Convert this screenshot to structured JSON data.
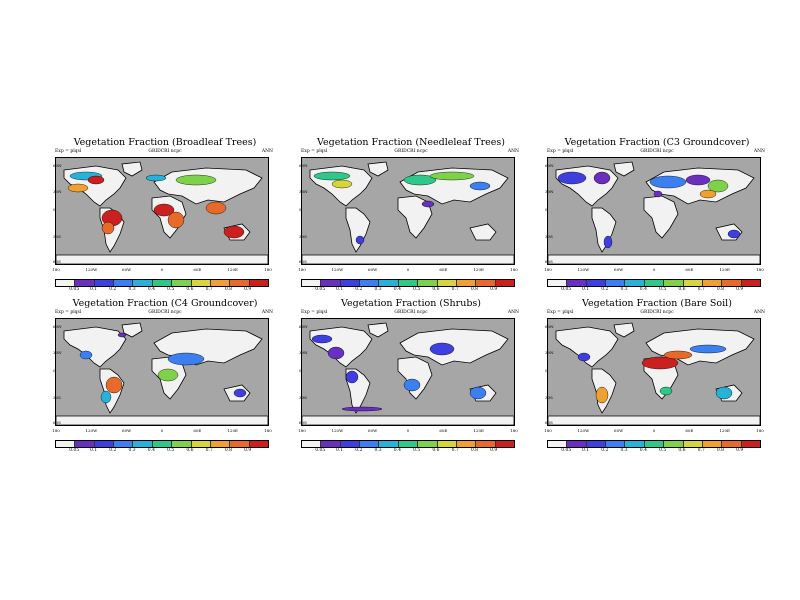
{
  "common": {
    "exp": "Exp = plqsl",
    "season": "ANN",
    "lat_labels": [
      "60N",
      "30N",
      "0",
      "30S",
      "60S"
    ],
    "lon_labels": [
      "180",
      "120W",
      "60W",
      "0",
      "60E",
      "120E",
      "180"
    ],
    "colorbar_labels": [
      "0.05",
      "0.1",
      "0.2",
      "0.3",
      "0.4",
      "0.5",
      "0.6",
      "0.7",
      "0.8",
      "0.9"
    ],
    "colorbar_colors": [
      "#f2f2f2",
      "#6b2fbf",
      "#3f3fe0",
      "#3b7ff0",
      "#27b3d9",
      "#2ec88a",
      "#7ed24a",
      "#d6d53a",
      "#f0a030",
      "#e86a2a",
      "#cc1f1f"
    ]
  },
  "panels": [
    {
      "title": "Vegetation Fraction (Broadleaf Trees)",
      "grid": "GRIDCRI ncpc"
    },
    {
      "title": "Vegetation Fraction (Needleleaf Trees)",
      "grid": "GRIDCRI ncpc"
    },
    {
      "title": "Vegetation Fraction (C3 Groundcover)",
      "grid": "GRIDCRI ncpc"
    },
    {
      "title": "Vegetation Fraction (C4 Groundcover)",
      "grid": "GRIDCRI ncpc"
    },
    {
      "title": "Vegetation Fraction (Shrubs)",
      "grid": "GRIDCRI ncpc"
    },
    {
      "title": "Vegetation Fraction (Bare Soil)",
      "grid": "GRIDCRI ncpc"
    }
  ]
}
